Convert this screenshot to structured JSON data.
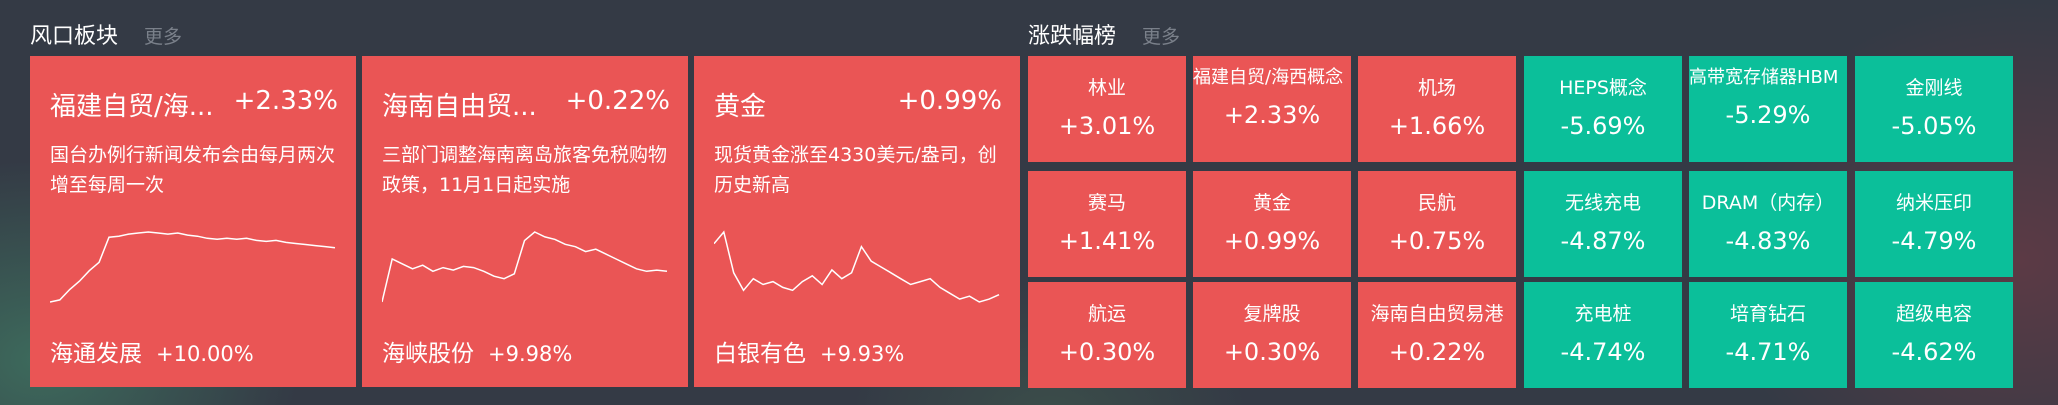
{
  "colors": {
    "up": "#ea5555",
    "down": "#0bbf9a",
    "background": "#343a45"
  },
  "hot": {
    "title": "风口板块",
    "more": "更多",
    "cards": [
      {
        "name": "福建自贸/海...",
        "pct": "+2.33%",
        "desc": "国台办例行新闻发布会由每月两次增至每周一次",
        "lead_name": "海通发展",
        "lead_pct": "+10.00%",
        "spark": [
          0,
          2,
          12,
          20,
          30,
          38,
          62,
          63,
          65,
          66,
          67,
          66,
          65,
          66,
          64,
          63,
          61,
          60,
          61,
          60,
          61,
          59,
          58,
          59,
          57,
          56,
          55,
          54,
          53,
          52
        ]
      },
      {
        "name": "海南自由贸...",
        "pct": "+0.22%",
        "desc": "三部门调整海南离岛旅客免税购物政策，11月1日起实施",
        "lead_name": "海峡股份",
        "lead_pct": "+9.98%",
        "spark": [
          5,
          40,
          36,
          32,
          35,
          30,
          33,
          31,
          34,
          33,
          30,
          26,
          24,
          28,
          55,
          62,
          58,
          56,
          52,
          50,
          46,
          48,
          44,
          40,
          36,
          32,
          30,
          31,
          30
        ]
      },
      {
        "name": "黄金",
        "pct": "+0.99%",
        "desc": "现货黄金涨至4330美元/盎司，创历史新高",
        "lead_name": "白银有色",
        "lead_pct": "+9.93%",
        "spark": [
          60,
          68,
          40,
          28,
          36,
          32,
          34,
          30,
          28,
          34,
          38,
          32,
          42,
          36,
          40,
          58,
          48,
          44,
          40,
          36,
          32,
          34,
          36,
          30,
          26,
          22,
          24,
          20,
          22,
          25
        ]
      }
    ]
  },
  "rank": {
    "title": "涨跌幅榜",
    "more": "更多",
    "items": [
      {
        "label": "林业",
        "value": "+3.01%",
        "dir": "up"
      },
      {
        "label": "福建自贸/海西概念",
        "value": "+2.33%",
        "dir": "up"
      },
      {
        "label": "机场",
        "value": "+1.66%",
        "dir": "up"
      },
      {
        "label": "HEPS概念",
        "value": "-5.69%",
        "dir": "down"
      },
      {
        "label": "高带宽存储器HBM",
        "value": "-5.29%",
        "dir": "down"
      },
      {
        "label": "金刚线",
        "value": "-5.05%",
        "dir": "down"
      },
      {
        "label": "赛马",
        "value": "+1.41%",
        "dir": "up"
      },
      {
        "label": "黄金",
        "value": "+0.99%",
        "dir": "up"
      },
      {
        "label": "民航",
        "value": "+0.75%",
        "dir": "up"
      },
      {
        "label": "无线充电",
        "value": "-4.87%",
        "dir": "down"
      },
      {
        "label": "DRAM（内存）",
        "value": "-4.83%",
        "dir": "down"
      },
      {
        "label": "纳米压印",
        "value": "-4.79%",
        "dir": "down"
      },
      {
        "label": "航运",
        "value": "+0.30%",
        "dir": "up"
      },
      {
        "label": "复牌股",
        "value": "+0.30%",
        "dir": "up"
      },
      {
        "label": "海南自由贸易港",
        "value": "+0.22%",
        "dir": "up"
      },
      {
        "label": "充电桩",
        "value": "-4.74%",
        "dir": "down"
      },
      {
        "label": "培育钻石",
        "value": "-4.71%",
        "dir": "down"
      },
      {
        "label": "超级电容",
        "value": "-4.62%",
        "dir": "down"
      }
    ]
  }
}
